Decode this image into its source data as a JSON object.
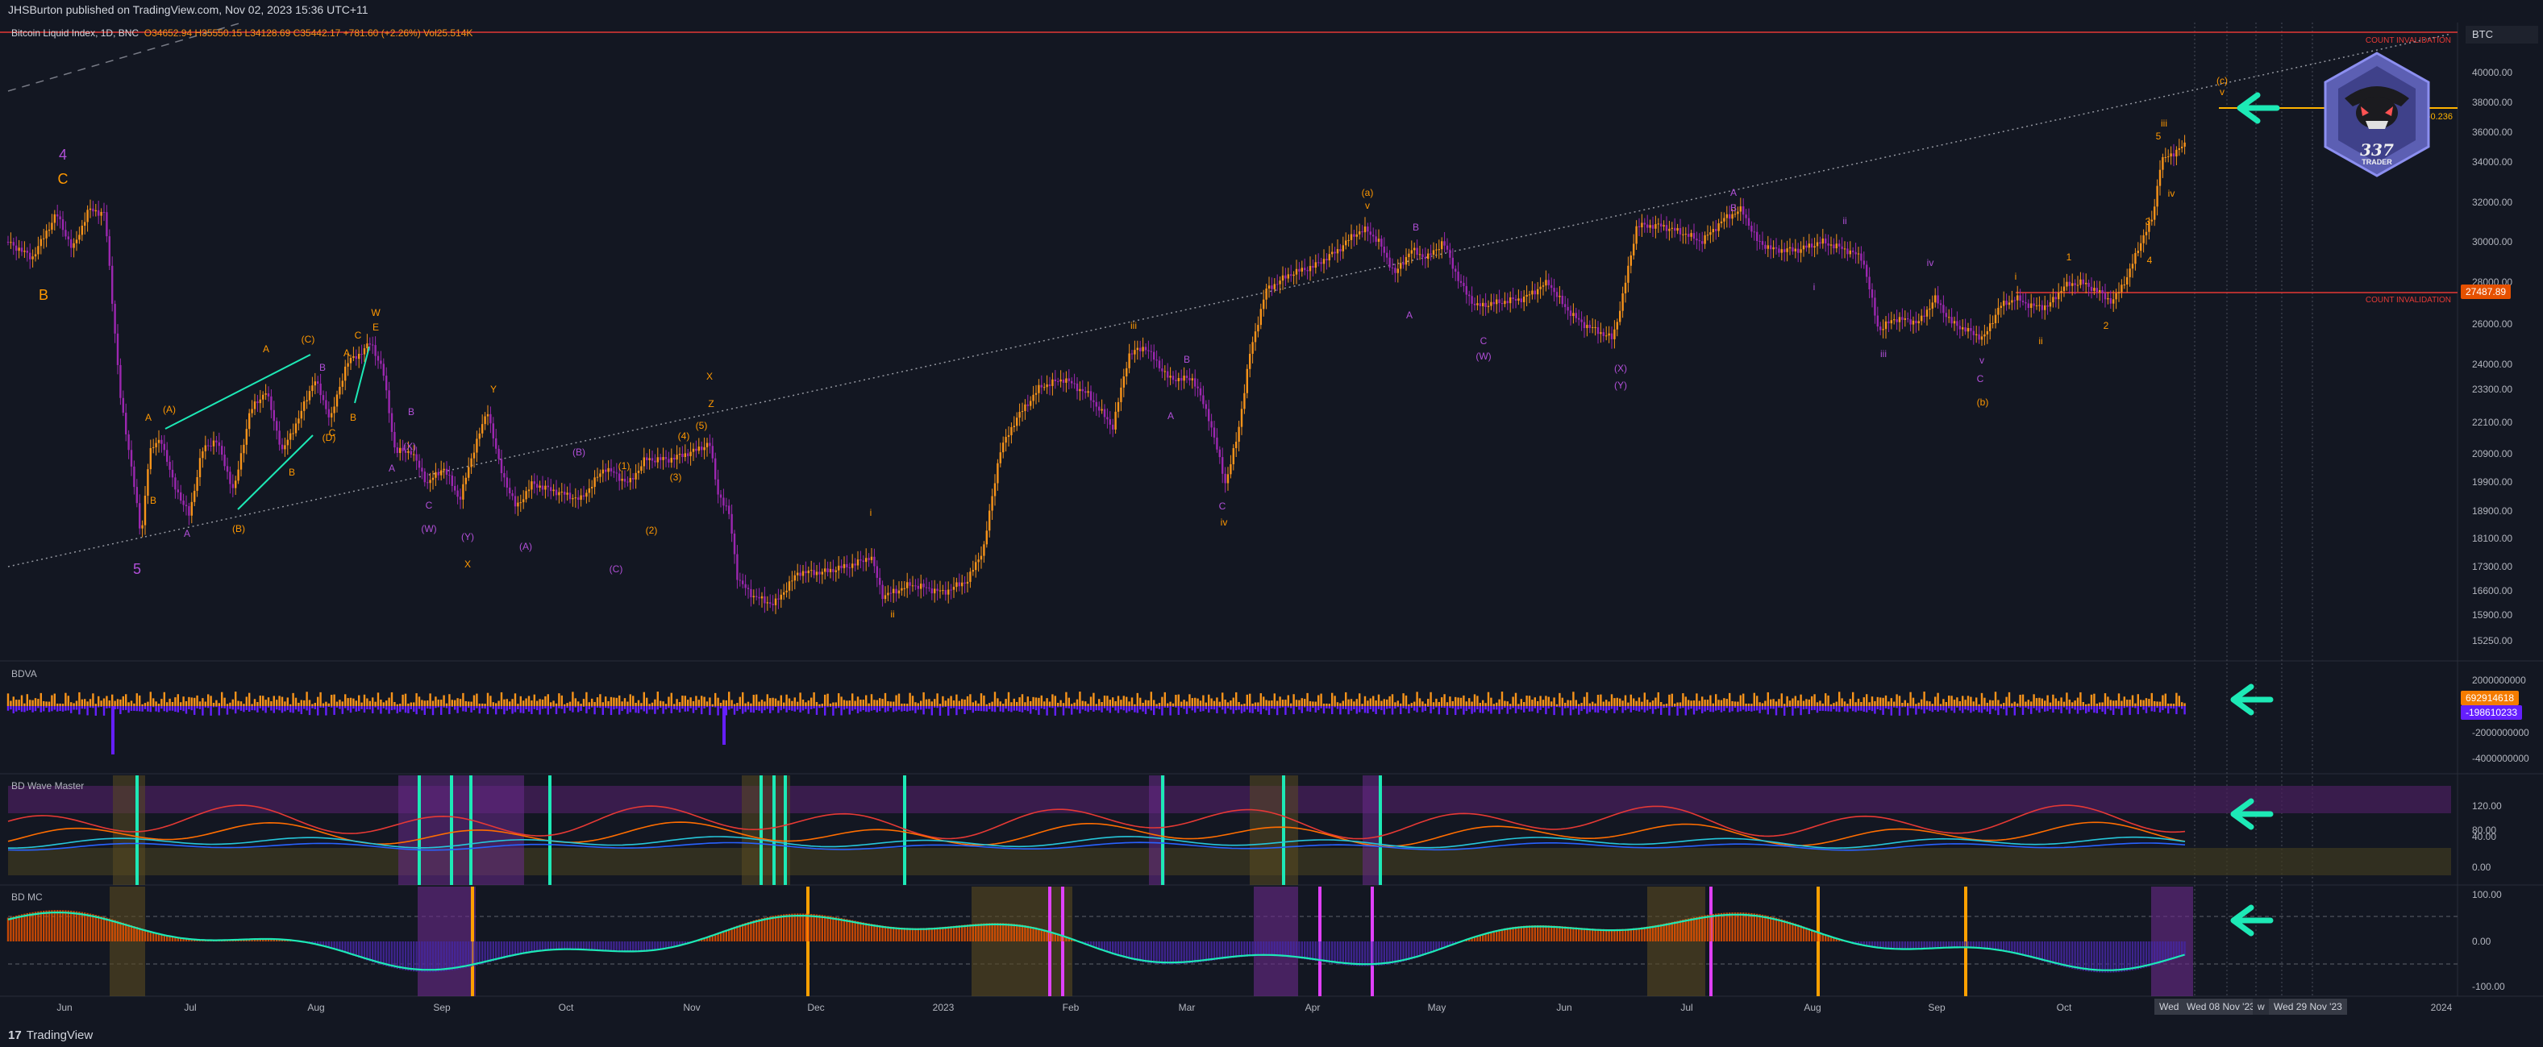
{
  "header": {
    "published_caption": "JHSBurton published on TradingView.com, Nov 02, 2023 15:36 UTC+11",
    "symbol_line": "Bitcoin Liquid Index, 1D, BNC",
    "ohlc_text": "O34652.94 H35550.15 L34128.69 C35442.17 +781.60 (+2.26%) Vol25.514K",
    "currency_tag": "BTC"
  },
  "footer": {
    "brand": "TradingView"
  },
  "colors": {
    "background": "#131722",
    "bull": "#f7931a",
    "bear": "#9c27b0",
    "wave_orange": "#ff9800",
    "wave_purple": "#b14fd8",
    "teal": "#1de9b6",
    "arrow": "#1de9b6",
    "invalidation": "#e53935"
  },
  "price_axis": {
    "ticks": [
      "40000.00",
      "38000.00",
      "36000.00",
      "34000.00",
      "32000.00",
      "30000.00",
      "28000.00",
      "26000.00",
      "24000.00",
      "23300.00",
      "22100.00",
      "20900.00",
      "19900.00",
      "18900.00",
      "18100.00",
      "17300.00",
      "16600.00",
      "15900.00",
      "15250.00"
    ],
    "current_label": "27487.89",
    "fib_label": "-0.236",
    "invalidation_label": "COUNT INVALIDATION",
    "invalidation_label_top": "COUNT INVALIDATION"
  },
  "time_axis": {
    "labels": [
      "Jun",
      "Jul",
      "Aug",
      "Sep",
      "Oct",
      "Nov",
      "Dec",
      "2023",
      "Feb",
      "Mar",
      "Apr",
      "May",
      "Jun",
      "Jul",
      "Aug",
      "Sep",
      "Oct",
      "2024"
    ],
    "highlight_left": "Wed",
    "highlight_mid": "Wed 08 Nov '23",
    "highlight_sep": "w",
    "highlight_right": "Wed 29 Nov '23"
  },
  "panels": {
    "bdva": {
      "title": "BDVA",
      "ticks": [
        "2000000000",
        "0",
        "-2000000000",
        "-4000000000"
      ],
      "value_up": "692914618",
      "value_down": "-198610233"
    },
    "wave": {
      "title": "BD Wave Master",
      "ticks": [
        "120.00",
        "80.00",
        "40.00",
        "0.00"
      ]
    },
    "mc": {
      "title": "BD MC",
      "ticks": [
        "100.00",
        "0.00",
        "-100.00"
      ]
    }
  },
  "wave_labels": [
    {
      "t": "4",
      "c": "purple"
    },
    {
      "t": "C",
      "c": "orange"
    },
    {
      "t": "B",
      "c": "orange"
    },
    {
      "t": "5",
      "c": "purple"
    },
    {
      "t": "A",
      "c": "orange"
    },
    {
      "t": "(A)",
      "c": "orange"
    },
    {
      "t": "B",
      "c": "orange"
    },
    {
      "t": "A",
      "c": "purple"
    },
    {
      "t": "A",
      "c": "orange"
    },
    {
      "t": "(C)",
      "c": "orange"
    },
    {
      "t": "B",
      "c": "purple"
    },
    {
      "t": "(B)",
      "c": "orange"
    },
    {
      "t": "B",
      "c": "orange"
    },
    {
      "t": "C",
      "c": "orange"
    },
    {
      "t": "(D)",
      "c": "orange"
    },
    {
      "t": "A",
      "c": "orange"
    },
    {
      "t": "B",
      "c": "orange"
    },
    {
      "t": "C",
      "c": "orange"
    },
    {
      "t": "E",
      "c": "orange"
    },
    {
      "t": "W",
      "c": "orange"
    },
    {
      "t": "A",
      "c": "purple"
    },
    {
      "t": "B",
      "c": "purple"
    },
    {
      "t": "C",
      "c": "purple"
    },
    {
      "t": "(X)",
      "c": "purple"
    },
    {
      "t": "(W)",
      "c": "purple"
    },
    {
      "t": "(Y)",
      "c": "purple"
    },
    {
      "t": "Y",
      "c": "orange"
    },
    {
      "t": "X",
      "c": "orange"
    },
    {
      "t": "(A)",
      "c": "purple"
    },
    {
      "t": "(B)",
      "c": "purple"
    },
    {
      "t": "(C)",
      "c": "purple"
    },
    {
      "t": "(1)",
      "c": "orange"
    },
    {
      "t": "(2)",
      "c": "orange"
    },
    {
      "t": "(3)",
      "c": "orange"
    },
    {
      "t": "(4)",
      "c": "orange"
    },
    {
      "t": "(5)",
      "c": "orange"
    },
    {
      "t": "Z",
      "c": "orange"
    },
    {
      "t": "X",
      "c": "orange"
    },
    {
      "t": "i",
      "c": "orange"
    },
    {
      "t": "ii",
      "c": "orange"
    },
    {
      "t": "iii",
      "c": "orange"
    },
    {
      "t": "B",
      "c": "purple"
    },
    {
      "t": "A",
      "c": "purple"
    },
    {
      "t": "C",
      "c": "purple"
    },
    {
      "t": "iv",
      "c": "orange"
    },
    {
      "t": "(a)",
      "c": "orange"
    },
    {
      "t": "v",
      "c": "orange"
    },
    {
      "t": "B",
      "c": "purple"
    },
    {
      "t": "A",
      "c": "purple"
    },
    {
      "t": "C",
      "c": "purple"
    },
    {
      "t": "(W)",
      "c": "purple"
    },
    {
      "t": "(X)",
      "c": "purple"
    },
    {
      "t": "(Y)",
      "c": "purple"
    },
    {
      "t": "A",
      "c": "purple"
    },
    {
      "t": "B",
      "c": "purple"
    },
    {
      "t": "ii",
      "c": "purple"
    },
    {
      "t": "i",
      "c": "purple"
    },
    {
      "t": "iii",
      "c": "purple"
    },
    {
      "t": "iv",
      "c": "purple"
    },
    {
      "t": "v",
      "c": "purple"
    },
    {
      "t": "C",
      "c": "purple"
    },
    {
      "t": "(b)",
      "c": "orange"
    },
    {
      "t": "i",
      "c": "orange"
    },
    {
      "t": "ii",
      "c": "orange"
    },
    {
      "t": "1",
      "c": "orange"
    },
    {
      "t": "2",
      "c": "orange"
    },
    {
      "t": "3",
      "c": "orange"
    },
    {
      "t": "4",
      "c": "orange"
    },
    {
      "t": "5",
      "c": "orange"
    },
    {
      "t": "iii",
      "c": "orange"
    },
    {
      "t": "iv",
      "c": "orange"
    },
    {
      "t": "(c)",
      "c": "orange"
    },
    {
      "t": "v",
      "c": "orange"
    }
  ],
  "logo": {
    "text_top": "337",
    "text_bottom": "TRADER"
  }
}
